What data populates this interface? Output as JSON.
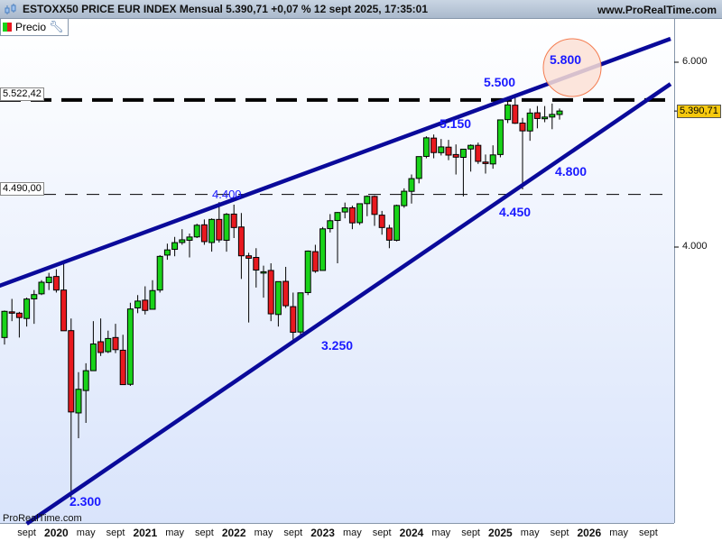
{
  "header": {
    "title": "ESTOXX50 PRICE EUR INDEX Mensual 5.390,71 +0,07 % 12 sept 2025, 17:35:01",
    "site": "www.ProRealTime.com"
  },
  "legend": {
    "label": "Precio"
  },
  "watermark": "ProRealTime.com",
  "colors": {
    "up": "#19d319",
    "down": "#e8191f",
    "trendline": "#0a0a9a",
    "annotation": "#1a1aff",
    "price_tag": "#f6c90e",
    "circle": "#f47c50"
  },
  "chart_data": {
    "type": "candlestick",
    "title": "ESTOXX50 PRICE EUR INDEX Mensual",
    "y_scale": "log",
    "ylim": [
      2240,
      6600
    ],
    "y_ticks": [
      "6.000",
      "4.000"
    ],
    "x_labels": [
      "sept",
      "2020",
      "may",
      "sept",
      "2021",
      "may",
      "sept",
      "2022",
      "may",
      "sept",
      "2023",
      "may",
      "sept",
      "2024",
      "may",
      "sept",
      "2025",
      "may",
      "sept",
      "2026",
      "may",
      "sept"
    ],
    "first_month": "2019-06",
    "last_price": "5.390,71",
    "hlines": [
      {
        "value": 5522.42,
        "label": "5.522,42",
        "style": "bold-dashed"
      },
      {
        "value": 4490.0,
        "label": "4.490,00",
        "style": "dashed"
      }
    ],
    "trendlines": [
      {
        "from": [
          "2019-05",
          3667
        ],
        "to": [
          "2026-12",
          6317
        ]
      },
      {
        "from": [
          "2019-09",
          2180
        ],
        "to": [
          "2026-12",
          5720
        ]
      }
    ],
    "annotations": [
      "2.300",
      "3.250",
      "4.400",
      "4.450",
      "4.800",
      "5.150",
      "5.500",
      "5.800"
    ],
    "ohlc": [
      [
        3280,
        3480,
        3230,
        3474
      ],
      [
        3470,
        3570,
        3400,
        3467
      ],
      [
        3460,
        3470,
        3280,
        3427
      ],
      [
        3420,
        3580,
        3360,
        3569
      ],
      [
        3570,
        3640,
        3380,
        3604
      ],
      [
        3610,
        3720,
        3600,
        3703
      ],
      [
        3700,
        3780,
        3640,
        3745
      ],
      [
        3750,
        3810,
        3620,
        3640
      ],
      [
        3640,
        3867,
        3330,
        3329
      ],
      [
        3330,
        3420,
        2303,
        2786
      ],
      [
        2780,
        3040,
        2630,
        2928
      ],
      [
        2920,
        3100,
        2720,
        3050
      ],
      [
        3050,
        3400,
        3050,
        3234
      ],
      [
        3250,
        3420,
        3150,
        3174
      ],
      [
        3180,
        3330,
        3170,
        3273
      ],
      [
        3280,
        3380,
        3170,
        3194
      ],
      [
        3190,
        3300,
        2960,
        2958
      ],
      [
        2960,
        3540,
        2950,
        3492
      ],
      [
        3500,
        3600,
        3460,
        3553
      ],
      [
        3560,
        3670,
        3450,
        3481
      ],
      [
        3490,
        3720,
        3490,
        3636
      ],
      [
        3640,
        3930,
        3620,
        3919
      ],
      [
        3930,
        4030,
        3890,
        3975
      ],
      [
        3980,
        4090,
        3920,
        4039
      ],
      [
        4040,
        4160,
        4020,
        4064
      ],
      [
        4060,
        4120,
        3910,
        4089
      ],
      [
        4090,
        4210,
        4080,
        4196
      ],
      [
        4200,
        4250,
        4020,
        4048
      ],
      [
        4040,
        4260,
        3960,
        4250
      ],
      [
        4250,
        4415,
        4040,
        4063
      ],
      [
        4060,
        4310,
        3960,
        4298
      ],
      [
        4300,
        4390,
        4080,
        4175
      ],
      [
        4180,
        4310,
        3730,
        3924
      ],
      [
        3924,
        3950,
        3390,
        3903
      ],
      [
        3910,
        3990,
        3660,
        3803
      ],
      [
        3780,
        3840,
        3580,
        3789
      ],
      [
        3800,
        3860,
        3400,
        3455
      ],
      [
        3450,
        3710,
        3360,
        3708
      ],
      [
        3710,
        3830,
        3500,
        3517
      ],
      [
        3510,
        3620,
        3250,
        3318
      ],
      [
        3320,
        3620,
        3270,
        3618
      ],
      [
        3620,
        3970,
        3600,
        3965
      ],
      [
        3960,
        4020,
        3780,
        3794
      ],
      [
        3800,
        4180,
        3800,
        4163
      ],
      [
        4165,
        4300,
        4130,
        4238
      ],
      [
        4240,
        4320,
        3860,
        4315
      ],
      [
        4320,
        4410,
        4260,
        4359
      ],
      [
        4360,
        4380,
        4160,
        4218
      ],
      [
        4220,
        4400,
        4200,
        4399
      ],
      [
        4400,
        4480,
        4280,
        4471
      ],
      [
        4470,
        4480,
        4190,
        4297
      ],
      [
        4290,
        4330,
        4110,
        4175
      ],
      [
        4170,
        4200,
        3990,
        4061
      ],
      [
        4060,
        4390,
        4050,
        4382
      ],
      [
        4380,
        4550,
        4360,
        4521
      ],
      [
        4520,
        4690,
        4400,
        4648
      ],
      [
        4650,
        4880,
        4600,
        4878
      ],
      [
        4880,
        5100,
        4860,
        5083
      ],
      [
        5080,
        5120,
        4860,
        4921
      ],
      [
        4920,
        5070,
        4890,
        4983
      ],
      [
        4980,
        5060,
        4840,
        4894
      ],
      [
        4900,
        5010,
        4690,
        4872
      ],
      [
        4870,
        4930,
        4470,
        4958
      ],
      [
        4960,
        5010,
        4720,
        5000
      ],
      [
        5000,
        5030,
        4800,
        4827
      ],
      [
        4820,
        4900,
        4700,
        4804
      ],
      [
        4800,
        5000,
        4750,
        4896
      ],
      [
        4900,
        5290,
        4870,
        5287
      ],
      [
        5290,
        5520,
        5250,
        5464
      ],
      [
        5460,
        5570,
        5240,
        5248
      ],
      [
        5250,
        5310,
        4540,
        5161
      ],
      [
        5160,
        5420,
        5050,
        5367
      ],
      [
        5370,
        5450,
        5190,
        5303
      ],
      [
        5300,
        5450,
        5260,
        5320
      ],
      [
        5320,
        5480,
        5180,
        5351
      ],
      [
        5350,
        5420,
        5290,
        5391
      ]
    ]
  }
}
